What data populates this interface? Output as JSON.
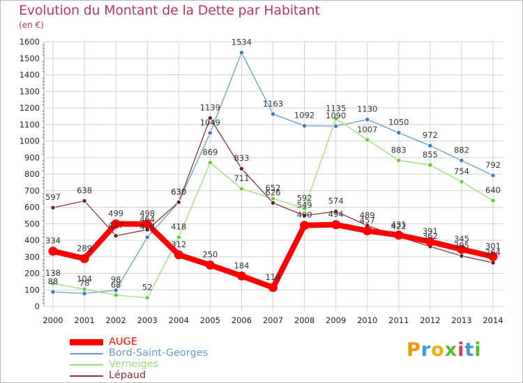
{
  "title": "Evolution du Montant de la Dette par Habitant",
  "unit": "(en €)",
  "brand": "Proxiti",
  "colors": {
    "title": "#b3366c",
    "grid": "#d0d0d0",
    "axis_tick": "#cc3333"
  },
  "chart_data": {
    "type": "line",
    "title": "Evolution du Montant de la Dette par Habitant",
    "ylabel": "(en €)",
    "xlabel": "",
    "x": [
      "2000",
      "2001",
      "2002",
      "2003",
      "2004",
      "2005",
      "2006",
      "2007",
      "2008",
      "2009",
      "2010",
      "2011",
      "2012",
      "2013",
      "2014"
    ],
    "ylim": [
      0,
      1600
    ],
    "yticks": [
      0,
      100,
      200,
      300,
      400,
      500,
      600,
      700,
      800,
      900,
      1000,
      1100,
      1200,
      1300,
      1400,
      1500,
      1600
    ],
    "grid": true,
    "legend_position": "bottom-left",
    "series": [
      {
        "name": "Bord-Saint-Georges",
        "color": "#6699cc",
        "marker": "#3a7ab8",
        "width": 1.3,
        "values": [
          88,
          78,
          98,
          418,
          630,
          1049,
          1534,
          1163,
          1092,
          1090,
          1130,
          1050,
          972,
          882,
          792
        ],
        "labels": [
          "88",
          "78",
          "98",
          "418",
          "630",
          "1049",
          "1534",
          "1163",
          "1092",
          "1090",
          "1130",
          "1050",
          "972",
          "882",
          "792"
        ]
      },
      {
        "name": "Verneiges",
        "color": "#99dd77",
        "marker": "#66cc33",
        "width": 1.3,
        "values": [
          138,
          104,
          68,
          52,
          418,
          869,
          711,
          652,
          592,
          1135,
          1007,
          883,
          855,
          754,
          640
        ],
        "labels": [
          "138",
          "104",
          "68",
          "52",
          "418",
          "869",
          "711",
          "652",
          "592",
          "1135",
          "1007",
          "883",
          "855",
          "754",
          "640"
        ]
      },
      {
        "name": "Lépaud",
        "color": "#883333",
        "marker": "#6b1e1e",
        "width": 1.3,
        "values": [
          597,
          638,
          427,
          464,
          630,
          1139,
          833,
          626,
          549,
          574,
          489,
          422,
          362,
          305,
          264
        ],
        "labels": [
          "597",
          "638",
          "427",
          "464",
          "630",
          "1139",
          "833",
          "626",
          "549",
          "574",
          "489",
          "422",
          "362",
          "305",
          "264"
        ]
      },
      {
        "name": "AUGE",
        "color": "#ff0000",
        "marker": "#ff0000",
        "width": 8,
        "values": [
          334,
          289,
          499,
          498,
          312,
          250,
          184,
          114,
          490,
          494,
          457,
          431,
          391,
          345,
          301
        ],
        "labels": [
          "334",
          "289",
          "499",
          "498",
          "312",
          "250",
          "184",
          "114",
          "490",
          "494",
          "457",
          "431",
          "391",
          "345",
          "301"
        ]
      }
    ],
    "legend_order": [
      "AUGE",
      "Bord-Saint-Georges",
      "Verneiges",
      "Lépaud"
    ]
  }
}
